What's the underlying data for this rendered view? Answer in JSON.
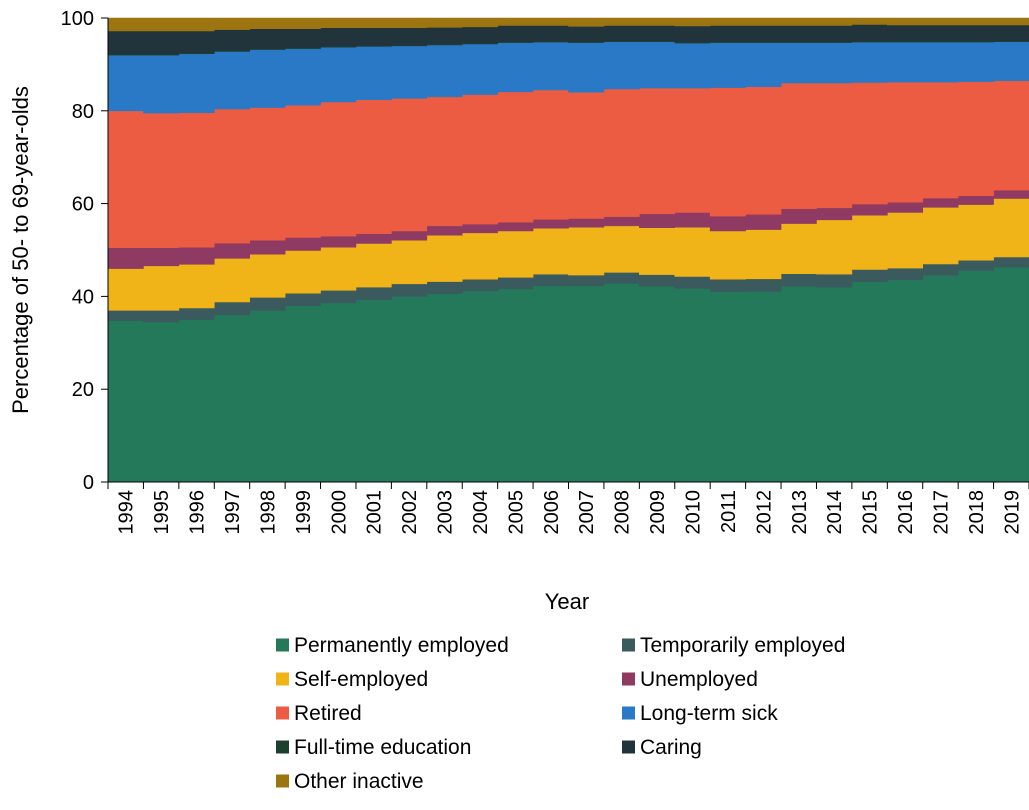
{
  "chart_data": {
    "type": "area",
    "title": "",
    "xlabel": "Year",
    "ylabel": "Percentage of 50- to 69-year-olds",
    "ylim": [
      0,
      100
    ],
    "yticks": [
      0,
      20,
      40,
      60,
      80,
      100
    ],
    "grid": false,
    "stacked": true,
    "step": true,
    "legend_position": "bottom",
    "categories": [
      "1994",
      "1995",
      "1996",
      "1997",
      "1998",
      "1999",
      "2000",
      "2001",
      "2002",
      "2003",
      "2004",
      "2005",
      "2006",
      "2007",
      "2008",
      "2009",
      "2010",
      "2011",
      "2012",
      "2013",
      "2014",
      "2015",
      "2016",
      "2017",
      "2018",
      "2019"
    ],
    "series": [
      {
        "name": "Permanently employed",
        "color": "#23795a",
        "values": [
          34.8,
          34.5,
          35.0,
          36.0,
          37.0,
          38.0,
          38.6,
          39.3,
          40.0,
          40.6,
          41.2,
          41.6,
          42.3,
          42.3,
          42.8,
          42.2,
          41.7,
          41.0,
          41.1,
          42.2,
          42.0,
          43.2,
          43.6,
          44.6,
          45.6,
          46.3
        ]
      },
      {
        "name": "Temporarily employed",
        "color": "#3a5a5e",
        "values": [
          2.2,
          2.5,
          2.5,
          2.8,
          2.8,
          2.7,
          2.7,
          2.7,
          2.7,
          2.6,
          2.5,
          2.5,
          2.5,
          2.3,
          2.4,
          2.5,
          2.6,
          2.7,
          2.7,
          2.7,
          2.8,
          2.6,
          2.5,
          2.4,
          2.2,
          2.2
        ]
      },
      {
        "name": "Self-employed",
        "color": "#f0b418",
        "values": [
          9.0,
          9.6,
          9.4,
          9.4,
          9.3,
          9.2,
          9.3,
          9.4,
          9.4,
          10.0,
          10.0,
          10.0,
          9.9,
          10.3,
          10.0,
          10.1,
          10.6,
          10.4,
          10.6,
          10.8,
          11.7,
          11.7,
          12.0,
          12.2,
          12.0,
          12.6
        ]
      },
      {
        "name": "Unemployed",
        "color": "#8e3a63",
        "values": [
          4.5,
          3.9,
          3.7,
          3.3,
          3.0,
          2.8,
          2.4,
          2.1,
          2.0,
          2.0,
          1.9,
          1.9,
          1.9,
          1.9,
          2.0,
          3.0,
          3.2,
          3.2,
          3.3,
          3.2,
          2.6,
          2.4,
          2.2,
          2.0,
          1.9,
          1.8
        ]
      },
      {
        "name": "Retired",
        "color": "#eb5c42",
        "values": [
          29.5,
          29.0,
          29.0,
          28.9,
          28.6,
          28.5,
          28.9,
          28.9,
          28.6,
          27.8,
          27.9,
          28.1,
          27.9,
          27.2,
          27.5,
          27.1,
          26.8,
          27.7,
          27.5,
          27.1,
          26.9,
          26.2,
          25.9,
          25.0,
          24.6,
          23.6
        ]
      },
      {
        "name": "Long-term sick",
        "color": "#2a79c6",
        "values": [
          12.0,
          12.5,
          12.7,
          12.4,
          12.5,
          12.2,
          11.8,
          11.5,
          11.3,
          11.2,
          10.9,
          10.6,
          10.3,
          10.7,
          10.2,
          10.0,
          9.7,
          9.7,
          9.5,
          8.7,
          8.7,
          8.7,
          8.6,
          8.6,
          8.5,
          8.4
        ]
      },
      {
        "name": "Full-time education",
        "color": "#1d3f30",
        "values": [
          0.2,
          0.2,
          0.2,
          0.2,
          0.2,
          0.2,
          0.2,
          0.2,
          0.2,
          0.2,
          0.2,
          0.2,
          0.2,
          0.2,
          0.2,
          0.2,
          0.2,
          0.2,
          0.2,
          0.2,
          0.2,
          0.2,
          0.2,
          0.2,
          0.2,
          0.2
        ]
      },
      {
        "name": "Caring",
        "color": "#22343b",
        "values": [
          5.0,
          5.0,
          4.7,
          4.5,
          4.3,
          4.1,
          4.0,
          3.8,
          3.7,
          3.6,
          3.5,
          3.5,
          3.4,
          3.3,
          3.3,
          3.3,
          3.5,
          3.5,
          3.5,
          3.5,
          3.5,
          3.6,
          3.5,
          3.5,
          3.5,
          3.4
        ]
      },
      {
        "name": "Other inactive",
        "color": "#9c7510",
        "values": [
          2.8,
          2.8,
          2.8,
          2.5,
          2.3,
          2.3,
          2.1,
          2.1,
          2.1,
          2.0,
          1.9,
          1.6,
          1.6,
          1.8,
          1.6,
          1.6,
          1.7,
          1.6,
          1.6,
          1.6,
          1.6,
          1.4,
          1.5,
          1.5,
          1.5,
          1.5
        ]
      }
    ]
  }
}
